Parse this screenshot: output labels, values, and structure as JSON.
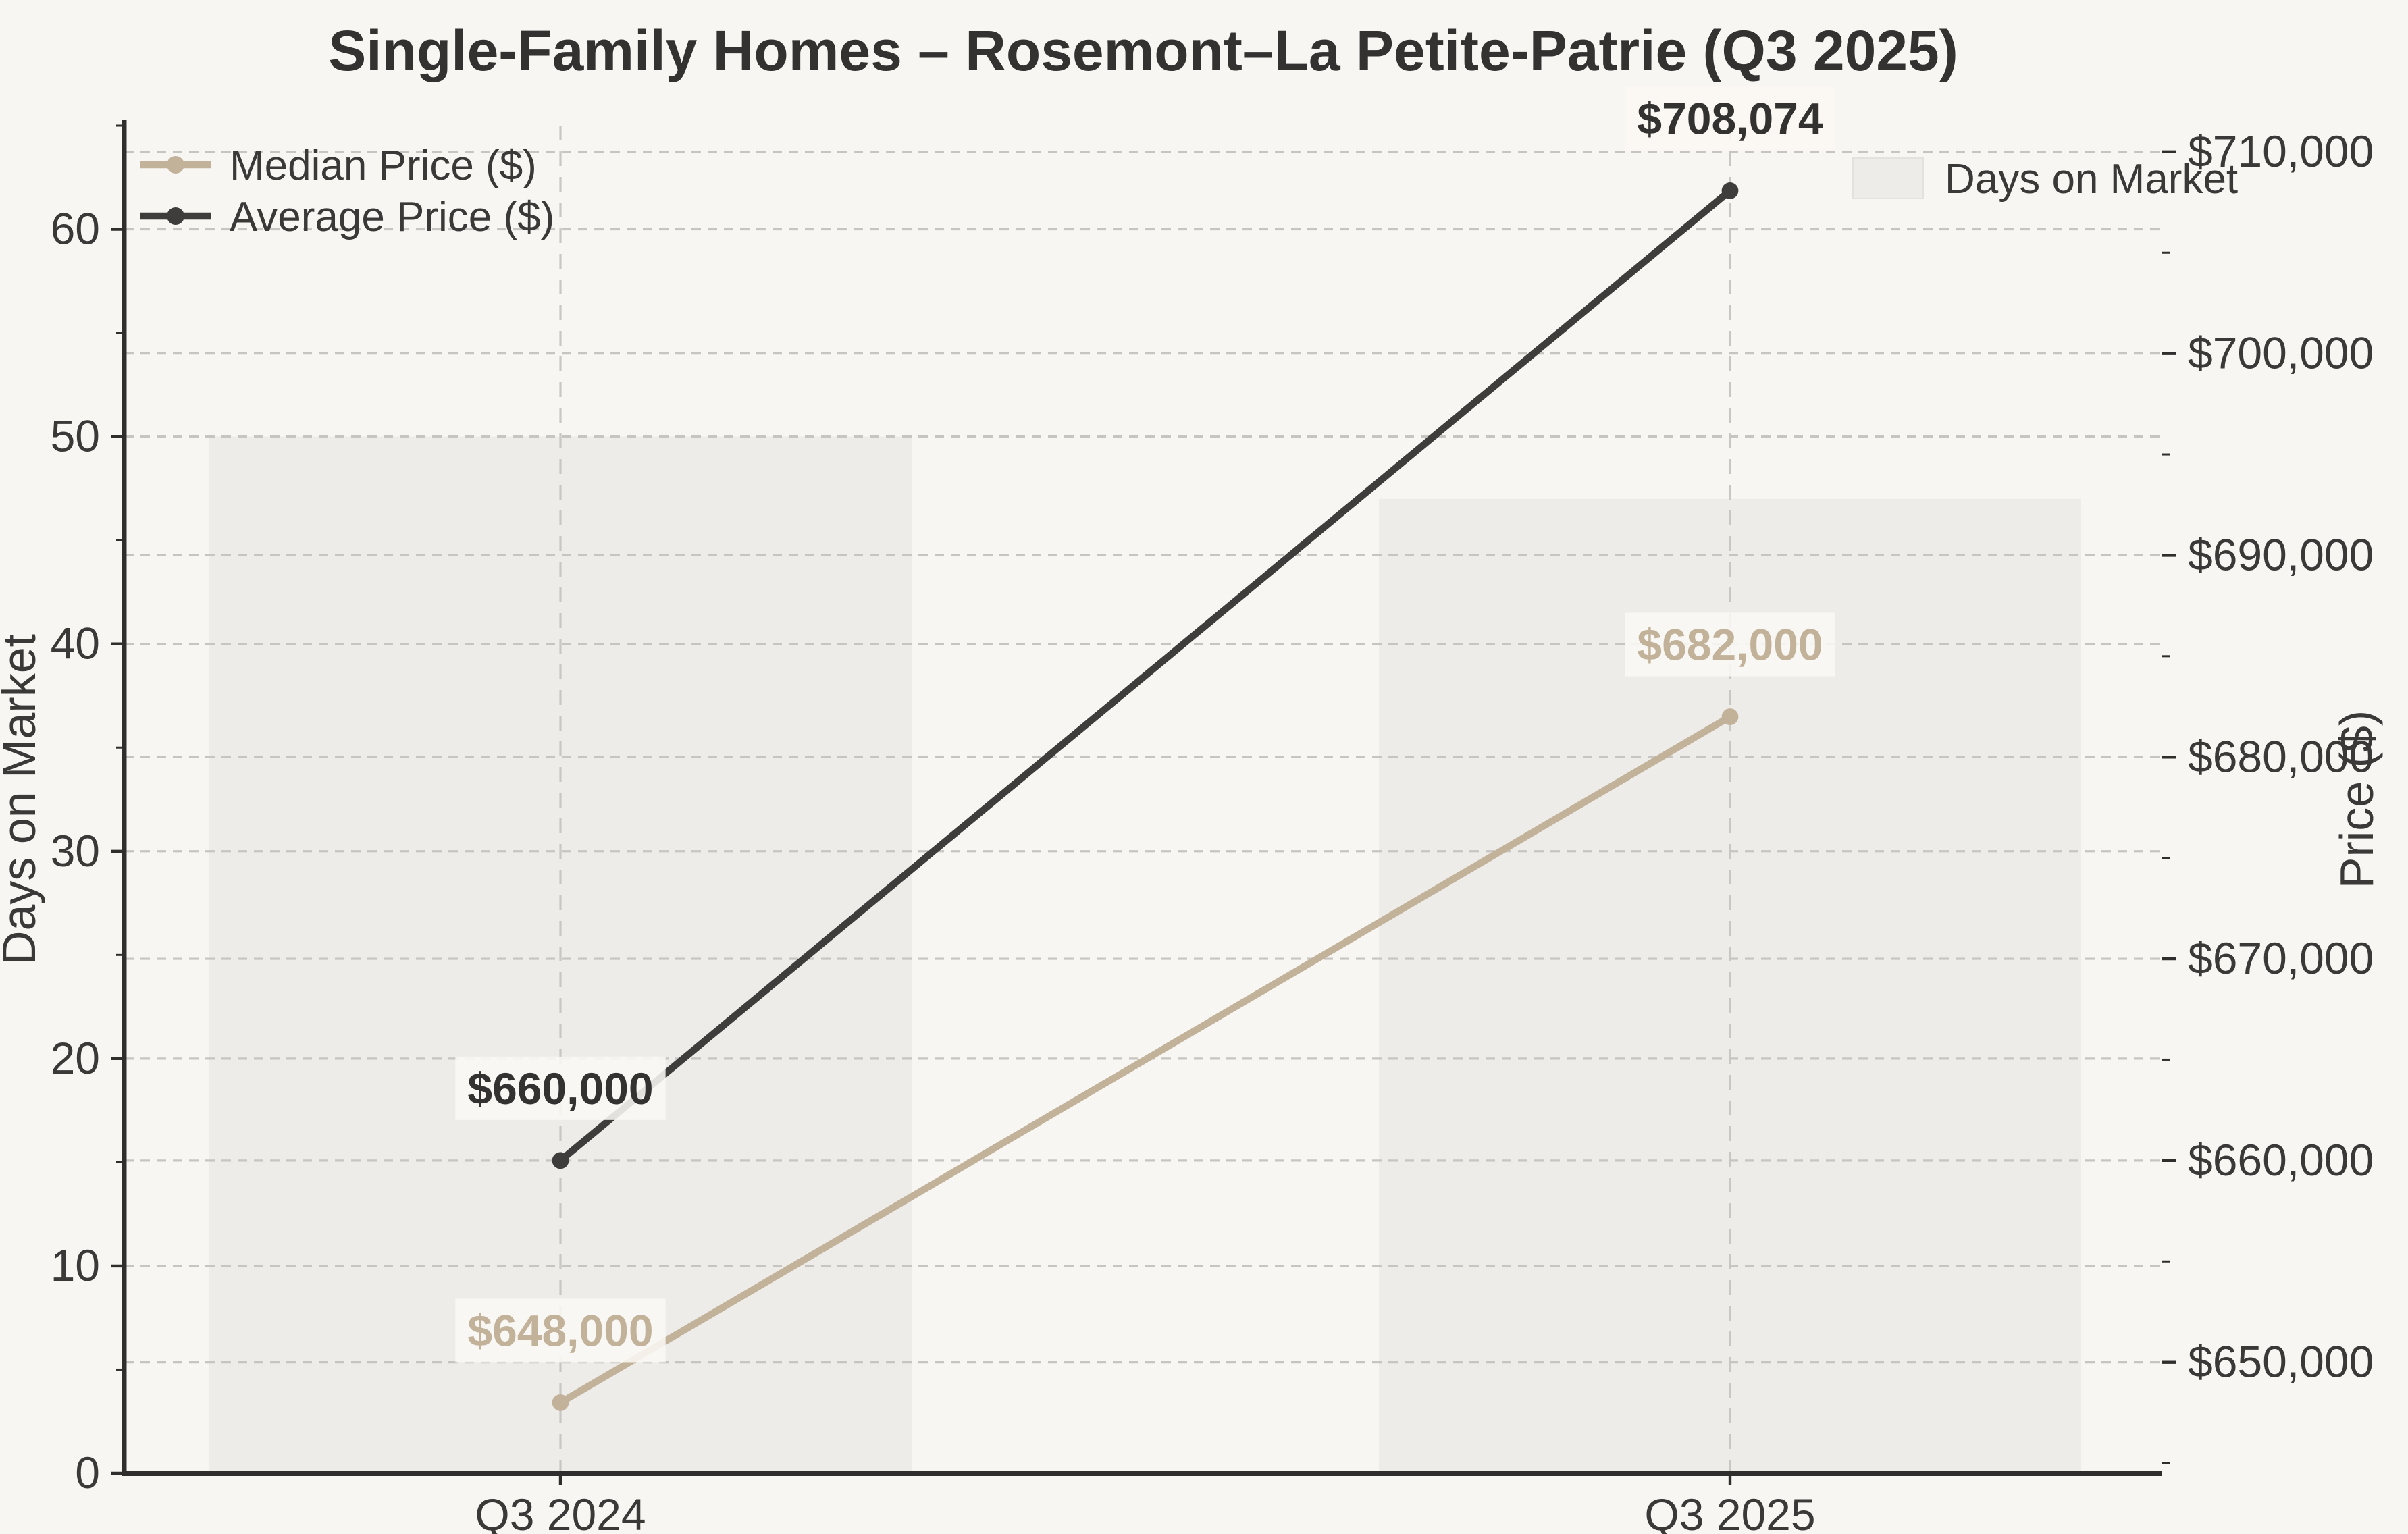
{
  "figure": {
    "title": "Single-Family Homes – Rosemont–La Petite-Patrie (Q3 2025)"
  },
  "chart_data": {
    "type": "combo-bar-line-dual-axis",
    "categories": [
      "Q3 2024",
      "Q3 2025"
    ],
    "series": [
      {
        "name": "Days on Market",
        "type": "bar",
        "axis": "left",
        "values": [
          50,
          47
        ],
        "color_key": "bar"
      },
      {
        "name": "Median Price ($)",
        "type": "line",
        "axis": "right",
        "values": [
          648000,
          682000
        ],
        "point_labels": [
          "$648,000",
          "$682,000"
        ],
        "color_key": "median"
      },
      {
        "name": "Average Price ($)",
        "type": "line",
        "axis": "right",
        "values": [
          660000,
          708074
        ],
        "point_labels": [
          "$660,000",
          "$708,074"
        ],
        "color_key": "average"
      }
    ],
    "axes": {
      "x": {
        "tick_labels": [
          "Q3 2024",
          "Q3 2025"
        ]
      },
      "left": {
        "label": "Days on Market",
        "range": [
          0,
          65
        ],
        "ticks": [
          0,
          10,
          20,
          30,
          40,
          50,
          60
        ],
        "tick_labels": [
          "0",
          "10",
          "20",
          "30",
          "40",
          "50",
          "60"
        ],
        "minor_step": 5
      },
      "right": {
        "label": "Price ($)",
        "range": [
          644500,
          711300
        ],
        "ticks": [
          650000,
          660000,
          670000,
          680000,
          690000,
          700000,
          710000
        ],
        "tick_labels": [
          "$650,000",
          "$660,000",
          "$670,000",
          "$680,000",
          "$690,000",
          "$700,000",
          "$710,000"
        ],
        "minor_step": 5000
      }
    },
    "grid": {
      "horizontal": "both-axes-major-ticks",
      "vertical": "category-positions",
      "line_style": "dashed"
    },
    "legend_lines": {
      "position": "upper-left",
      "entries": [
        {
          "label": "Median Price ($)",
          "marker": "line-with-dot",
          "color_key": "median"
        },
        {
          "label": "Average Price ($)",
          "marker": "line-with-dot",
          "color_key": "average"
        }
      ]
    },
    "legend_bars": {
      "position": "upper-right",
      "entries": [
        {
          "label": "Days on Market",
          "marker": "swatch",
          "color_key": "bar"
        }
      ]
    }
  },
  "colors": {
    "background": "#f8f6f3",
    "bar": "#edece9",
    "bar_edge": "#e4e2df",
    "median": "#c3b29a",
    "average": "#3e3d3c",
    "grid": "#c7c5c2",
    "grid_vertical": "#c9c7c4",
    "spine": "#2f2e2d",
    "tick_text": "#3a3938",
    "title_text": "#333231",
    "label_box": "#faf8f4"
  }
}
